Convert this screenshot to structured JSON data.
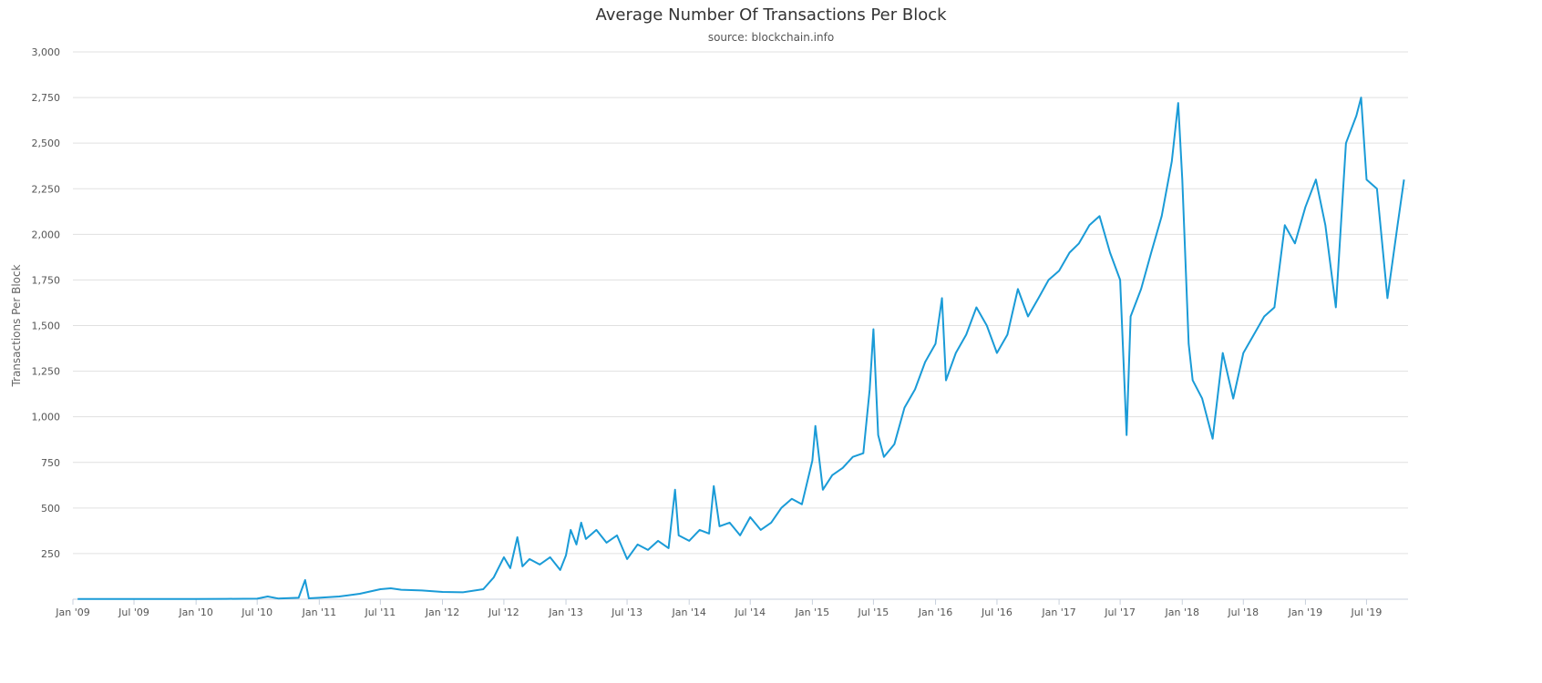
{
  "chart_data": {
    "type": "line",
    "title": "Average Number Of Transactions Per Block",
    "subtitle": "source: blockchain.info",
    "xlabel": "",
    "ylabel": "Transactions Per Block",
    "grid": true,
    "legend": "none",
    "line_color": "#1a9bd7",
    "grid_color": "#e0e0e0",
    "ylim": [
      0,
      3000
    ],
    "y_ticks": [
      250,
      500,
      750,
      1000,
      1250,
      1500,
      1750,
      2000,
      2250,
      2500,
      2750,
      3000
    ],
    "y_tick_labels": [
      "250",
      "500",
      "750",
      "1,000",
      "1,250",
      "1,500",
      "1,750",
      "2,000",
      "2,250",
      "2,500",
      "2,750",
      "3,000"
    ],
    "x_range": [
      "2009-01-01",
      "2019-11-01"
    ],
    "x_tick_dates": [
      "2009-01-01",
      "2009-07-01",
      "2010-01-01",
      "2010-07-01",
      "2011-01-01",
      "2011-07-01",
      "2012-01-01",
      "2012-07-01",
      "2013-01-01",
      "2013-07-01",
      "2014-01-01",
      "2014-07-01",
      "2015-01-01",
      "2015-07-01",
      "2016-01-01",
      "2016-07-01",
      "2017-01-01",
      "2017-07-01",
      "2018-01-01",
      "2018-07-01",
      "2019-01-01",
      "2019-07-01"
    ],
    "x_tick_labels": [
      "Jan '09",
      "Jul '09",
      "Jan '10",
      "Jul '10",
      "Jan '11",
      "Jul '11",
      "Jan '12",
      "Jul '12",
      "Jan '13",
      "Jul '13",
      "Jan '14",
      "Jul '14",
      "Jan '15",
      "Jul '15",
      "Jan '16",
      "Jul '16",
      "Jan '17",
      "Jul '17",
      "Jan '18",
      "Jul '18",
      "Jan '19",
      "Jul '19"
    ],
    "series": [
      {
        "values": [
          [
            "2009-01-15",
            1
          ],
          [
            "2009-04-01",
            1
          ],
          [
            "2009-07-01",
            1
          ],
          [
            "2009-10-01",
            1
          ],
          [
            "2010-01-01",
            1
          ],
          [
            "2010-04-01",
            2
          ],
          [
            "2010-07-01",
            3
          ],
          [
            "2010-08-01",
            15
          ],
          [
            "2010-09-01",
            4
          ],
          [
            "2010-11-01",
            8
          ],
          [
            "2010-11-20",
            105
          ],
          [
            "2010-12-01",
            5
          ],
          [
            "2011-01-01",
            8
          ],
          [
            "2011-03-01",
            15
          ],
          [
            "2011-05-01",
            30
          ],
          [
            "2011-07-01",
            55
          ],
          [
            "2011-08-01",
            60
          ],
          [
            "2011-09-01",
            52
          ],
          [
            "2011-11-01",
            48
          ],
          [
            "2012-01-01",
            40
          ],
          [
            "2012-03-01",
            38
          ],
          [
            "2012-05-01",
            55
          ],
          [
            "2012-06-01",
            120
          ],
          [
            "2012-07-01",
            230
          ],
          [
            "2012-07-20",
            170
          ],
          [
            "2012-08-10",
            340
          ],
          [
            "2012-08-25",
            180
          ],
          [
            "2012-09-15",
            220
          ],
          [
            "2012-10-15",
            190
          ],
          [
            "2012-11-15",
            230
          ],
          [
            "2012-12-15",
            160
          ],
          [
            "2013-01-01",
            240
          ],
          [
            "2013-01-15",
            380
          ],
          [
            "2013-02-01",
            300
          ],
          [
            "2013-02-15",
            420
          ],
          [
            "2013-03-01",
            330
          ],
          [
            "2013-04-01",
            380
          ],
          [
            "2013-05-01",
            310
          ],
          [
            "2013-06-01",
            350
          ],
          [
            "2013-07-01",
            220
          ],
          [
            "2013-08-01",
            300
          ],
          [
            "2013-09-01",
            270
          ],
          [
            "2013-10-01",
            320
          ],
          [
            "2013-11-01",
            280
          ],
          [
            "2013-11-20",
            600
          ],
          [
            "2013-12-01",
            350
          ],
          [
            "2014-01-01",
            320
          ],
          [
            "2014-02-01",
            380
          ],
          [
            "2014-03-01",
            360
          ],
          [
            "2014-03-15",
            620
          ],
          [
            "2014-04-01",
            400
          ],
          [
            "2014-05-01",
            420
          ],
          [
            "2014-06-01",
            350
          ],
          [
            "2014-07-01",
            450
          ],
          [
            "2014-08-01",
            380
          ],
          [
            "2014-09-01",
            420
          ],
          [
            "2014-10-01",
            500
          ],
          [
            "2014-11-01",
            550
          ],
          [
            "2014-12-01",
            520
          ],
          [
            "2015-01-01",
            760
          ],
          [
            "2015-01-10",
            950
          ],
          [
            "2015-02-01",
            600
          ],
          [
            "2015-03-01",
            680
          ],
          [
            "2015-04-01",
            720
          ],
          [
            "2015-05-01",
            780
          ],
          [
            "2015-06-01",
            800
          ],
          [
            "2015-06-20",
            1150
          ],
          [
            "2015-07-01",
            1480
          ],
          [
            "2015-07-15",
            900
          ],
          [
            "2015-08-01",
            780
          ],
          [
            "2015-09-01",
            850
          ],
          [
            "2015-10-01",
            1050
          ],
          [
            "2015-11-01",
            1150
          ],
          [
            "2015-12-01",
            1300
          ],
          [
            "2016-01-01",
            1400
          ],
          [
            "2016-01-20",
            1650
          ],
          [
            "2016-02-01",
            1200
          ],
          [
            "2016-03-01",
            1350
          ],
          [
            "2016-04-01",
            1450
          ],
          [
            "2016-05-01",
            1600
          ],
          [
            "2016-06-01",
            1500
          ],
          [
            "2016-07-01",
            1350
          ],
          [
            "2016-08-01",
            1450
          ],
          [
            "2016-09-01",
            1700
          ],
          [
            "2016-10-01",
            1550
          ],
          [
            "2016-11-01",
            1650
          ],
          [
            "2016-12-01",
            1750
          ],
          [
            "2017-01-01",
            1800
          ],
          [
            "2017-02-01",
            1900
          ],
          [
            "2017-03-01",
            1950
          ],
          [
            "2017-04-01",
            2050
          ],
          [
            "2017-05-01",
            2100
          ],
          [
            "2017-06-01",
            1900
          ],
          [
            "2017-07-01",
            1750
          ],
          [
            "2017-07-20",
            900
          ],
          [
            "2017-08-01",
            1550
          ],
          [
            "2017-09-01",
            1700
          ],
          [
            "2017-10-01",
            1900
          ],
          [
            "2017-11-01",
            2100
          ],
          [
            "2017-12-01",
            2400
          ],
          [
            "2017-12-20",
            2720
          ],
          [
            "2018-01-01",
            2300
          ],
          [
            "2018-01-20",
            1400
          ],
          [
            "2018-02-01",
            1200
          ],
          [
            "2018-03-01",
            1100
          ],
          [
            "2018-04-01",
            880
          ],
          [
            "2018-05-01",
            1350
          ],
          [
            "2018-06-01",
            1100
          ],
          [
            "2018-07-01",
            1350
          ],
          [
            "2018-08-01",
            1450
          ],
          [
            "2018-09-01",
            1550
          ],
          [
            "2018-10-01",
            1600
          ],
          [
            "2018-11-01",
            2050
          ],
          [
            "2018-12-01",
            1950
          ],
          [
            "2019-01-01",
            2150
          ],
          [
            "2019-02-01",
            2300
          ],
          [
            "2019-03-01",
            2050
          ],
          [
            "2019-04-01",
            1600
          ],
          [
            "2019-05-01",
            2500
          ],
          [
            "2019-06-01",
            2650
          ],
          [
            "2019-06-15",
            2750
          ],
          [
            "2019-07-01",
            2300
          ],
          [
            "2019-08-01",
            2250
          ],
          [
            "2019-09-01",
            1650
          ],
          [
            "2019-10-01",
            2050
          ],
          [
            "2019-10-20",
            2300
          ]
        ]
      }
    ]
  }
}
